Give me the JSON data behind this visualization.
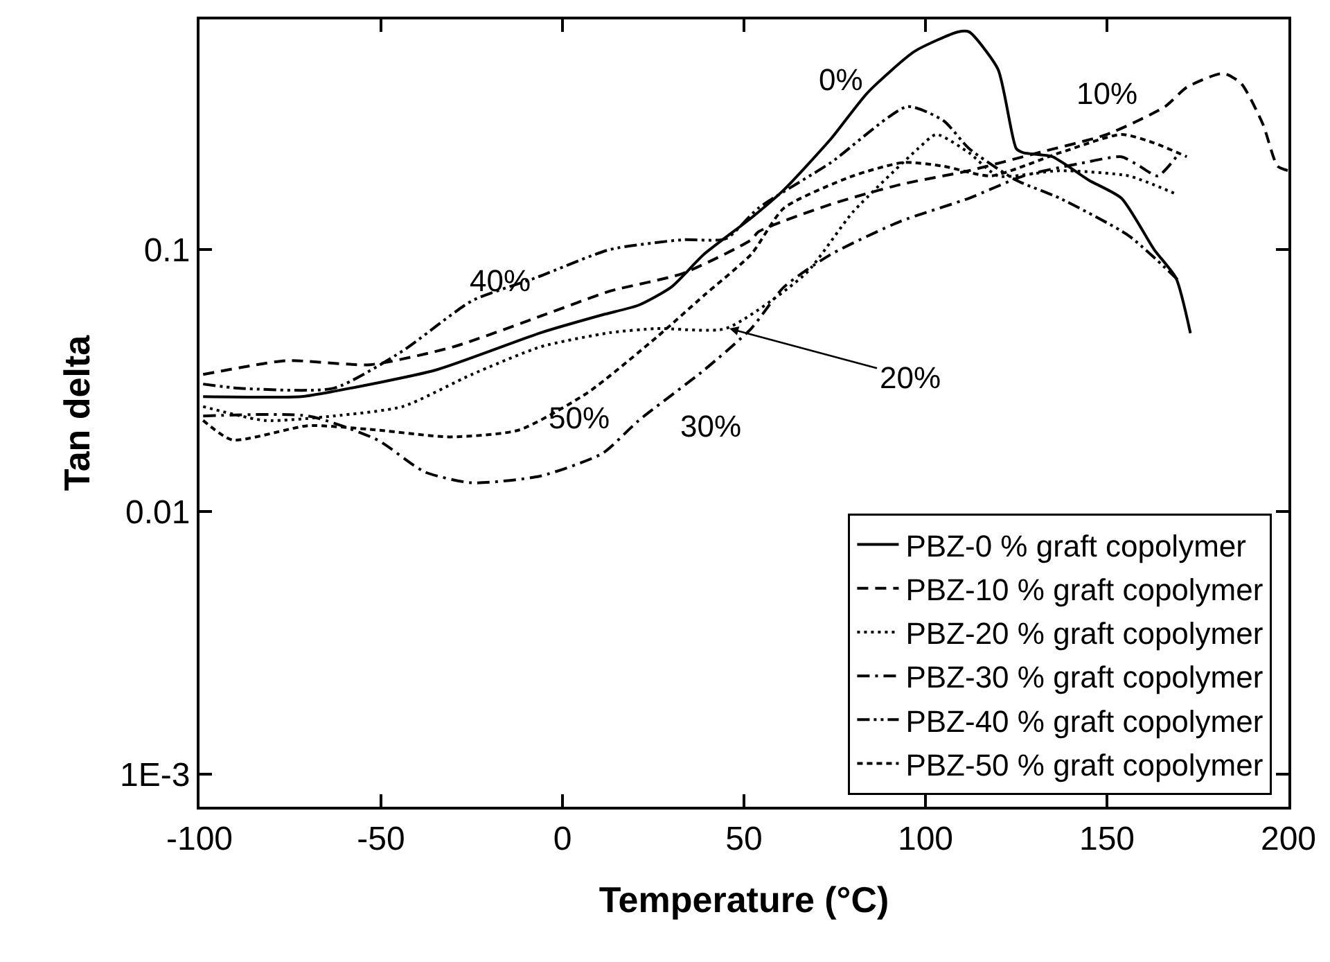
{
  "chart_data": {
    "type": "line",
    "xlabel": "Temperature (°C)",
    "ylabel": "Tan delta",
    "log": "y",
    "grid": false,
    "legend": "bottom right",
    "marker": "none",
    "xlim": [
      -100,
      200
    ],
    "xticks": [
      -100,
      -50,
      0,
      50,
      100,
      150,
      200
    ],
    "ylim": [
      0.00075,
      0.755
    ],
    "yticks": [
      {
        "value": 0.001,
        "label": "1E-3"
      },
      0.01,
      0.1
    ],
    "series": [
      {
        "name": "PBZ-0 % graft copolymer",
        "color": "#000000",
        "line_style": "solid",
        "x": [
          -99,
          -72,
          -63,
          -35,
          -6,
          11,
          21,
          30,
          39,
          52,
          61,
          74,
          84,
          97,
          109,
          112,
          120,
          125,
          127,
          135,
          145,
          154,
          163,
          169,
          173
        ],
        "values": [
          0.0275,
          0.0275,
          0.0288,
          0.0347,
          0.0482,
          0.0564,
          0.0614,
          0.072,
          0.096,
          0.132,
          0.169,
          0.265,
          0.396,
          0.57,
          0.677,
          0.677,
          0.487,
          0.243,
          0.234,
          0.226,
          0.184,
          0.157,
          0.1,
          0.078,
          0.048
        ]
      },
      {
        "name": "PBZ-10 % graft copolymer",
        "color": "#000000",
        "line_style": "dashed",
        "x": [
          -99,
          -76,
          -53,
          -30,
          -5,
          13,
          33,
          52,
          54,
          74,
          93,
          112,
          131,
          150,
          166,
          172,
          182,
          187,
          193,
          197,
          200
        ],
        "values": [
          0.0334,
          0.0377,
          0.0364,
          0.0426,
          0.0564,
          0.0694,
          0.081,
          0.109,
          0.117,
          0.149,
          0.177,
          0.2,
          0.234,
          0.275,
          0.351,
          0.416,
          0.47,
          0.43,
          0.3,
          0.208,
          0.2
        ]
      },
      {
        "name": "PBZ-20 % graft copolymer",
        "color": "#000000",
        "line_style": "dotted",
        "x": [
          -99,
          -82,
          -63,
          -44,
          -25,
          -6,
          13,
          26,
          45,
          67,
          80,
          98,
          103,
          112,
          120,
          137,
          156,
          169
        ],
        "values": [
          0.0252,
          0.0223,
          0.0232,
          0.0252,
          0.0334,
          0.0426,
          0.0482,
          0.05,
          0.05,
          0.081,
          0.139,
          0.243,
          0.275,
          0.234,
          0.191,
          0.2,
          0.191,
          0.163
        ]
      },
      {
        "name": "PBZ-30 % graft copolymer",
        "color": "#000000",
        "line_style": "dashdot",
        "x": [
          -99,
          -70,
          -51,
          -38,
          -25,
          -6,
          11,
          21,
          39,
          52,
          61,
          74,
          93,
          112,
          127,
          144,
          154,
          159,
          164,
          170
        ],
        "values": [
          0.0232,
          0.0232,
          0.0188,
          0.0142,
          0.0129,
          0.0137,
          0.0167,
          0.0223,
          0.0347,
          0.05,
          0.072,
          0.096,
          0.128,
          0.157,
          0.191,
          0.215,
          0.226,
          0.208,
          0.191,
          0.234
        ]
      },
      {
        "name": "PBZ-40 % graft copolymer",
        "color": "#000000",
        "line_style": "dashdotdot",
        "x": [
          -99,
          -89,
          -63,
          -44,
          -25,
          -7,
          13,
          33,
          45,
          54,
          74,
          95,
          105,
          112,
          125,
          137,
          156,
          170
        ],
        "values": [
          0.0307,
          0.0296,
          0.0296,
          0.0411,
          0.0637,
          0.0784,
          0.1,
          0.109,
          0.11,
          0.144,
          0.215,
          0.351,
          0.31,
          0.243,
          0.184,
          0.157,
          0.113,
          0.0756
        ]
      },
      {
        "name": "PBZ-50 % graft copolymer",
        "color": "#000000",
        "line_style": "shortdash",
        "x": [
          -99,
          -91,
          -70,
          -51,
          -31,
          -12,
          7,
          26,
          39,
          52,
          61,
          80,
          94,
          105,
          118,
          137,
          154,
          163,
          172
        ],
        "values": [
          0.0223,
          0.0188,
          0.0213,
          0.0205,
          0.0193,
          0.0205,
          0.0285,
          0.0464,
          0.0669,
          0.096,
          0.144,
          0.191,
          0.215,
          0.208,
          0.191,
          0.234,
          0.275,
          0.255,
          0.226
        ]
      }
    ],
    "annotations": [
      "0%",
      "10%",
      "40%",
      "50%",
      "30%",
      {
        "text": "20%",
        "x": 46,
        "y": 0.05
      }
    ]
  }
}
